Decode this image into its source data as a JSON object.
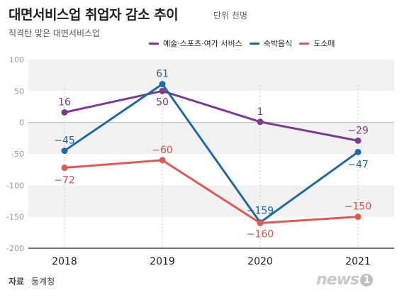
{
  "title": "대면서비스업 취업자 감소 추이",
  "unit": "단위 천명",
  "subtitle": "직격탄 맞은 대면서비스업",
  "source": {
    "label": "자료",
    "value": "통계청"
  },
  "logo": {
    "text": "news",
    "mark": "1"
  },
  "chart_data": {
    "type": "line",
    "categories": [
      "2018",
      "2019",
      "2020",
      "2021"
    ],
    "series": [
      {
        "name": "예술·스포츠·여가 서비스",
        "color": "#7b3c8f",
        "values": [
          16,
          50,
          1,
          -29
        ]
      },
      {
        "name": "숙박음식",
        "color": "#1f6aa5",
        "values": [
          -45,
          61,
          -159,
          -47
        ]
      },
      {
        "name": "도소매",
        "color": "#e05a55",
        "values": [
          -72,
          -60,
          -160,
          -150
        ]
      }
    ],
    "ylim": [
      -200,
      100
    ],
    "yticks": [
      "100",
      "50",
      "0",
      "-50",
      "-100",
      "-150",
      "-200"
    ],
    "legend": "top-right",
    "grid": true
  }
}
